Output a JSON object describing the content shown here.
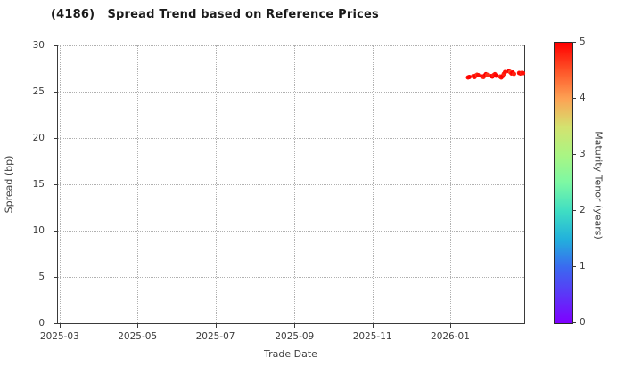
{
  "chart_data": {
    "type": "scatter",
    "title": "(4186)   Spread Trend based on Reference Prices",
    "xlabel": "Trade Date",
    "ylabel": "Spread (bp)",
    "ylim": [
      0,
      30
    ],
    "yticks": [
      0,
      5,
      10,
      15,
      20,
      25,
      30
    ],
    "xlim": [
      "2025-02-27",
      "2026-02-28"
    ],
    "xticks": [
      {
        "label": "2025-03",
        "date": "2025-03-01"
      },
      {
        "label": "2025-05",
        "date": "2025-05-01"
      },
      {
        "label": "2025-07",
        "date": "2025-07-01"
      },
      {
        "label": "2025-09",
        "date": "2025-09-01"
      },
      {
        "label": "2025-11",
        "date": "2025-11-01"
      },
      {
        "label": "2026-01",
        "date": "2026-01-01"
      }
    ],
    "grid": "dotted",
    "legend": "none",
    "marker": {
      "shape": "circle",
      "radius_px": 2.5,
      "color_by": "tenor_years"
    },
    "colorbar": {
      "label": "Maturity Tenor (years)",
      "min": 0,
      "max": 5,
      "ticks": [
        0,
        1,
        2,
        3,
        4,
        5
      ],
      "colormap": "rainbow",
      "stops": [
        [
          0,
          "#7f00ff"
        ],
        [
          1,
          "#3a6af0"
        ],
        [
          1.5,
          "#22b1dc"
        ],
        [
          2,
          "#3fdec3"
        ],
        [
          2.5,
          "#7cf8a4"
        ],
        [
          3,
          "#aaf583"
        ],
        [
          3.5,
          "#d4e26f"
        ],
        [
          4,
          "#fda254"
        ],
        [
          4.5,
          "#fe5428"
        ],
        [
          5,
          "#ff0000"
        ]
      ]
    },
    "series": [
      {
        "name": "spread_vs_trade_date",
        "points": [
          {
            "date": "2026-01-15",
            "spread_bp": 26.54,
            "tenor_years": 4.9
          },
          {
            "date": "2026-01-16",
            "spread_bp": 26.59,
            "tenor_years": 5.0
          },
          {
            "date": "2026-01-19",
            "spread_bp": 26.68,
            "tenor_years": 4.8
          },
          {
            "date": "2026-01-20",
            "spread_bp": 26.59,
            "tenor_years": 4.9
          },
          {
            "date": "2026-01-21",
            "spread_bp": 26.73,
            "tenor_years": 5.0
          },
          {
            "date": "2026-01-22",
            "spread_bp": 26.83,
            "tenor_years": 4.7
          },
          {
            "date": "2026-01-23",
            "spread_bp": 26.78,
            "tenor_years": 4.9
          },
          {
            "date": "2026-01-26",
            "spread_bp": 26.63,
            "tenor_years": 5.0
          },
          {
            "date": "2026-01-27",
            "spread_bp": 26.59,
            "tenor_years": 4.8
          },
          {
            "date": "2026-01-28",
            "spread_bp": 26.73,
            "tenor_years": 4.9
          },
          {
            "date": "2026-01-29",
            "spread_bp": 26.88,
            "tenor_years": 5.0
          },
          {
            "date": "2026-01-30",
            "spread_bp": 26.83,
            "tenor_years": 4.7
          },
          {
            "date": "2026-02-02",
            "spread_bp": 26.68,
            "tenor_years": 4.9
          },
          {
            "date": "2026-02-03",
            "spread_bp": 26.63,
            "tenor_years": 5.0
          },
          {
            "date": "2026-02-04",
            "spread_bp": 26.78,
            "tenor_years": 4.8
          },
          {
            "date": "2026-02-05",
            "spread_bp": 26.88,
            "tenor_years": 4.9
          },
          {
            "date": "2026-02-06",
            "spread_bp": 26.73,
            "tenor_years": 5.0
          },
          {
            "date": "2026-02-09",
            "spread_bp": 26.63,
            "tenor_years": 4.7
          },
          {
            "date": "2026-02-10",
            "spread_bp": 26.54,
            "tenor_years": 4.9
          },
          {
            "date": "2026-02-11",
            "spread_bp": 26.68,
            "tenor_years": 5.0
          },
          {
            "date": "2026-02-12",
            "spread_bp": 26.92,
            "tenor_years": 4.8
          },
          {
            "date": "2026-02-13",
            "spread_bp": 27.12,
            "tenor_years": 4.9
          },
          {
            "date": "2026-02-16",
            "spread_bp": 27.21,
            "tenor_years": 5.0
          },
          {
            "date": "2026-02-17",
            "spread_bp": 27.12,
            "tenor_years": 4.6
          },
          {
            "date": "2026-02-18",
            "spread_bp": 26.97,
            "tenor_years": 4.9
          },
          {
            "date": "2026-02-19",
            "spread_bp": 27.07,
            "tenor_years": 5.0
          },
          {
            "date": "2026-02-20",
            "spread_bp": 26.92,
            "tenor_years": 4.8
          },
          {
            "date": "2026-02-24",
            "spread_bp": 27.02,
            "tenor_years": 4.9
          },
          {
            "date": "2026-02-25",
            "spread_bp": 26.97,
            "tenor_years": 5.0
          },
          {
            "date": "2026-02-26",
            "spread_bp": 27.02,
            "tenor_years": 4.8
          },
          {
            "date": "2026-02-27",
            "spread_bp": 27.0,
            "tenor_years": 4.9
          }
        ]
      }
    ]
  }
}
